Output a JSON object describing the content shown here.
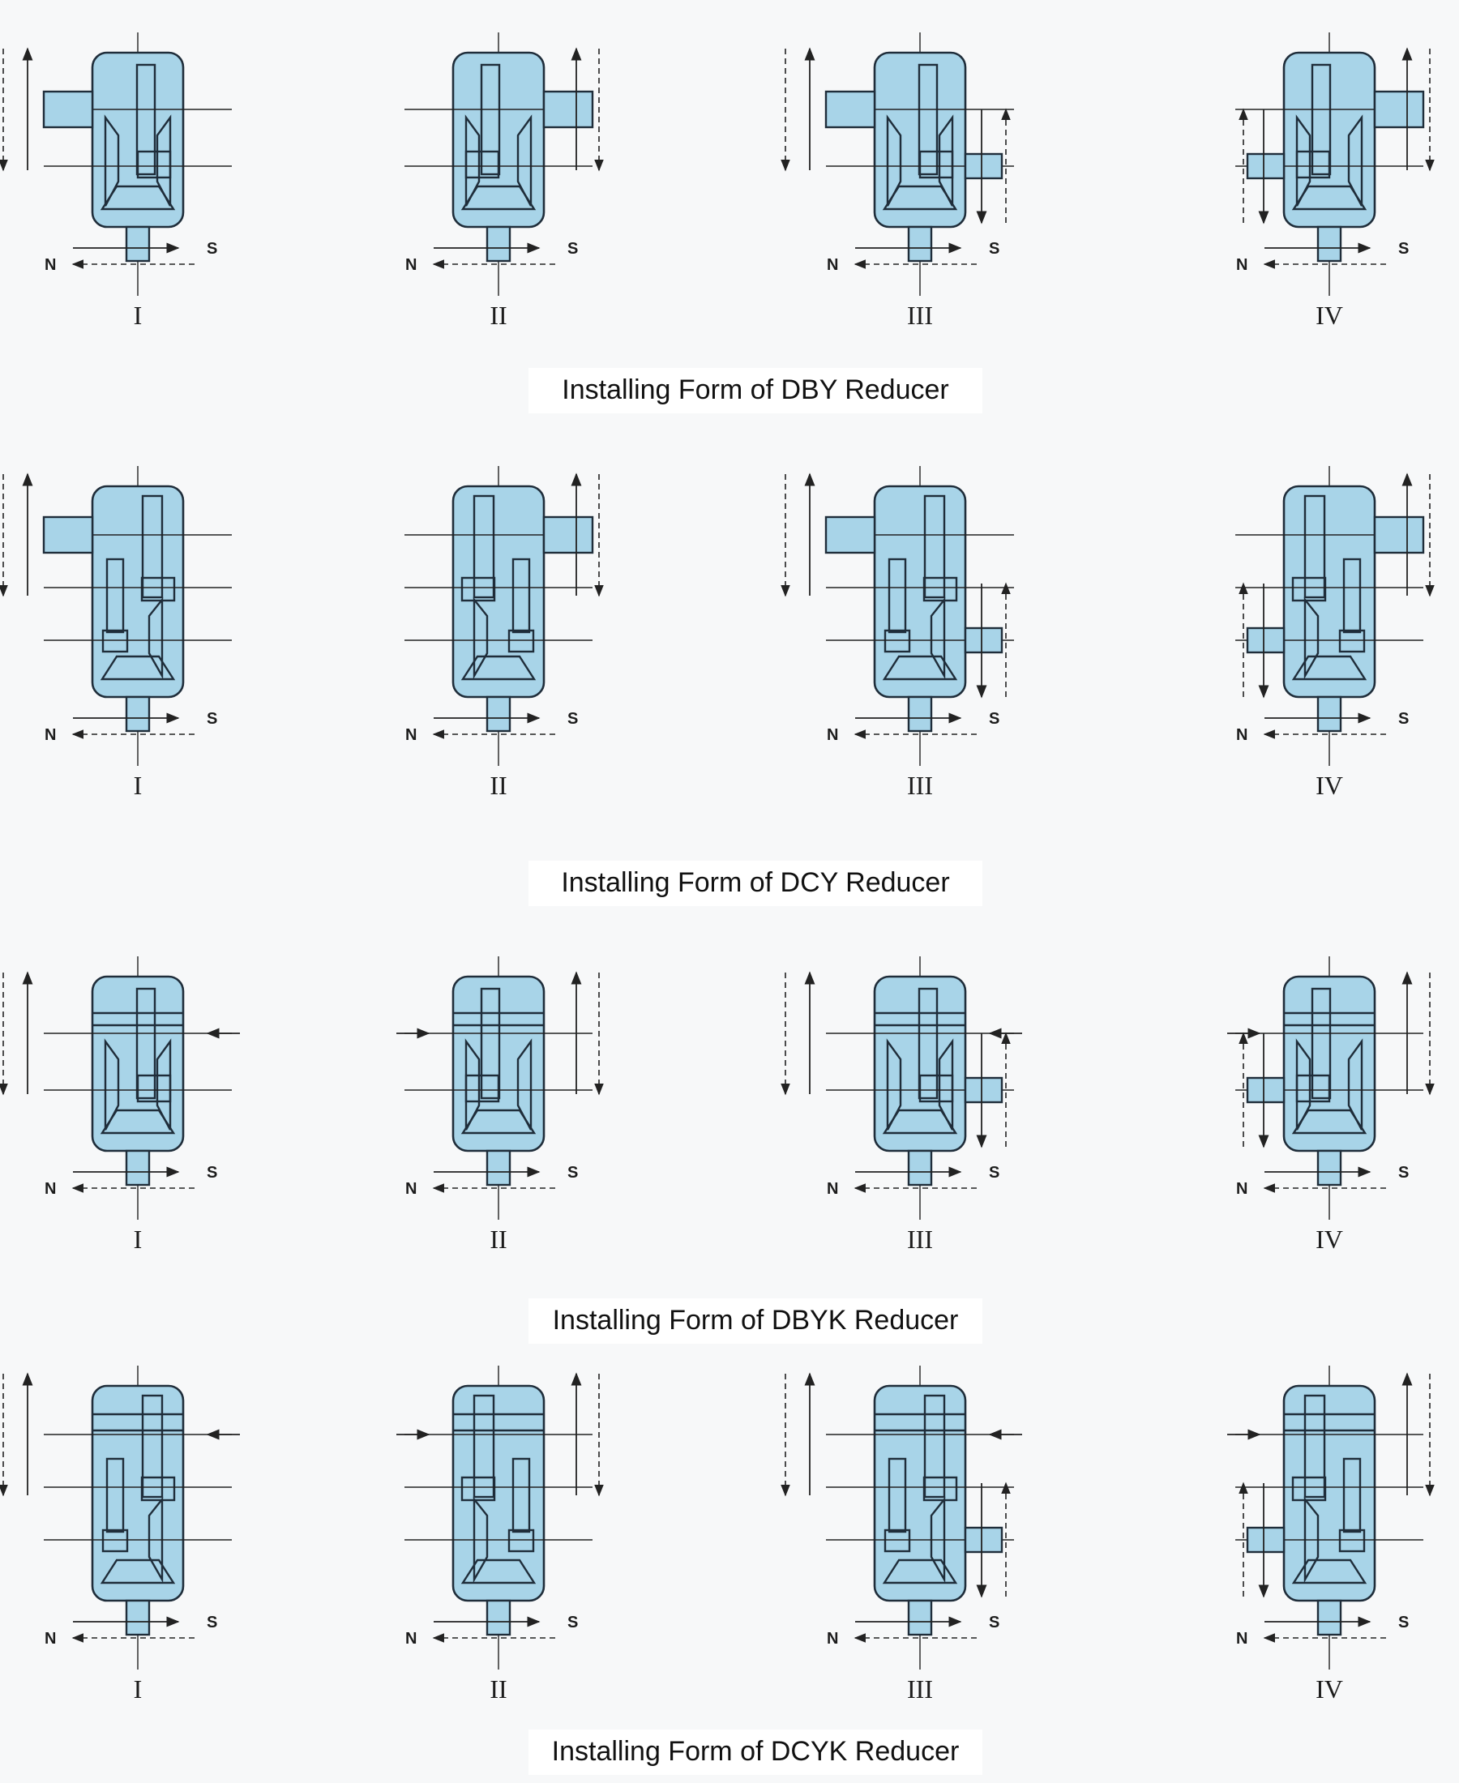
{
  "sections": [
    {
      "caption": "Installing Form of DBY Reducer",
      "variant": "dby",
      "forms": [
        {
          "roman": "I",
          "s": "S",
          "n": "N",
          "side": "left"
        },
        {
          "roman": "II",
          "s": "S",
          "n": "N",
          "side": "right"
        },
        {
          "roman": "III",
          "s": "S",
          "n": "N",
          "side": "left-right"
        },
        {
          "roman": "IV",
          "s": "S",
          "n": "N",
          "side": "right-left"
        }
      ]
    },
    {
      "caption": "Installing Form of DCY Reducer",
      "variant": "dcy",
      "forms": [
        {
          "roman": "I",
          "s": "S",
          "n": "N",
          "side": "left"
        },
        {
          "roman": "II",
          "s": "S",
          "n": "N",
          "side": "right"
        },
        {
          "roman": "III",
          "s": "S",
          "n": "N",
          "side": "left-right"
        },
        {
          "roman": "IV",
          "s": "S",
          "n": "N",
          "side": "right-left"
        }
      ]
    },
    {
      "caption": "Installing Form of DBYK Reducer",
      "variant": "dbyk",
      "forms": [
        {
          "roman": "I",
          "s": "S",
          "n": "N",
          "side": "left"
        },
        {
          "roman": "II",
          "s": "S",
          "n": "N",
          "side": "right"
        },
        {
          "roman": "III",
          "s": "S",
          "n": "N",
          "side": "left-right"
        },
        {
          "roman": "IV",
          "s": "S",
          "n": "N",
          "side": "right-left"
        }
      ]
    },
    {
      "caption": "Installing Form of DCYK Reducer",
      "variant": "dcyk",
      "forms": [
        {
          "roman": "I",
          "s": "S",
          "n": "N",
          "side": "left"
        },
        {
          "roman": "II",
          "s": "S",
          "n": "N",
          "side": "right"
        },
        {
          "roman": "III",
          "s": "S",
          "n": "N",
          "side": "left-right"
        },
        {
          "roman": "IV",
          "s": "S",
          "n": "N",
          "side": "right-left"
        }
      ]
    }
  ],
  "colors": {
    "housing": "#a8d4e8",
    "outline": "#1f2d3a",
    "background": "#f7f8f9"
  }
}
